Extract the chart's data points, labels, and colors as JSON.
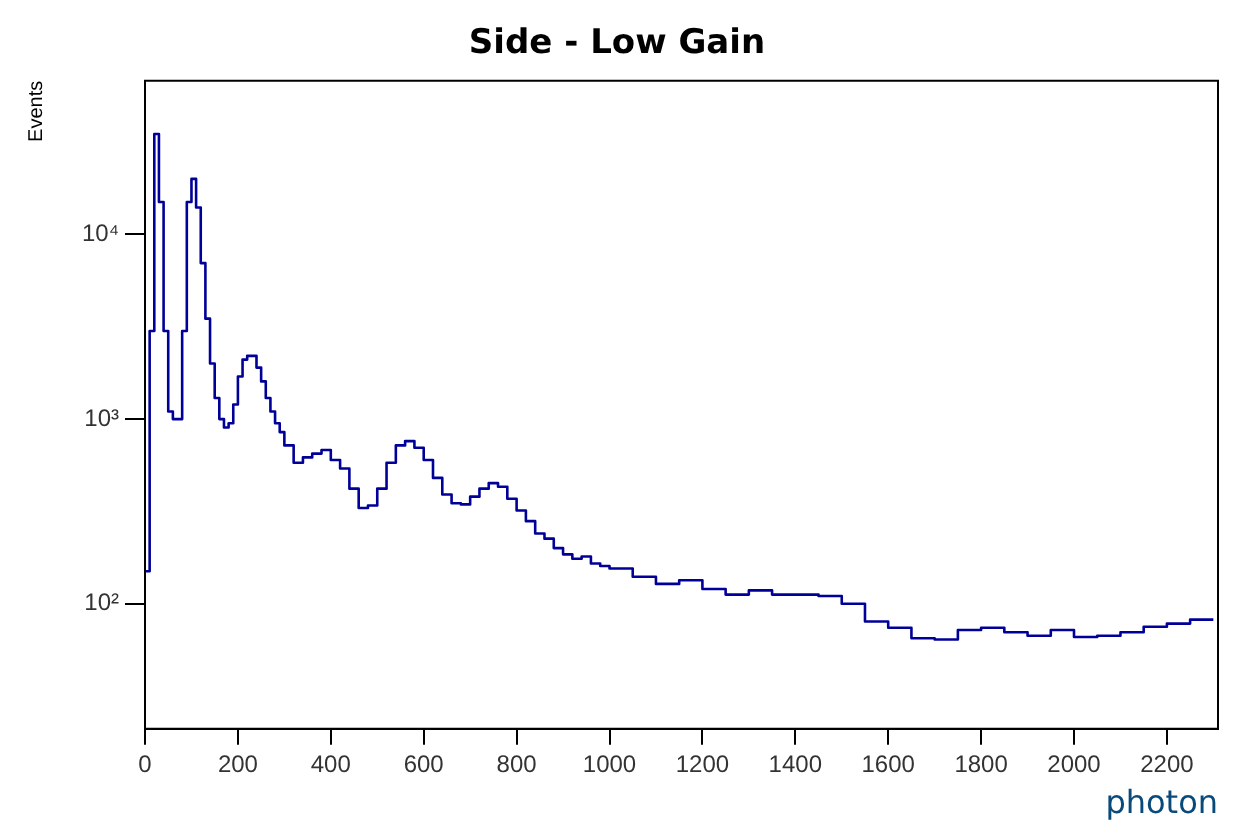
{
  "chart_data": {
    "type": "histogram",
    "title": "Side - Low Gain",
    "xlabel": "photon",
    "ylabel": "Events",
    "bins": [
      0,
      10,
      20,
      30,
      40,
      50,
      60,
      70,
      80,
      90,
      100,
      110,
      120,
      130,
      140,
      150,
      160,
      170,
      180,
      190,
      200,
      210,
      220,
      230,
      240,
      250,
      260,
      270,
      280,
      290,
      300,
      320,
      340,
      360,
      380,
      400,
      420,
      440,
      460,
      480,
      500,
      520,
      540,
      560,
      580,
      600,
      620,
      640,
      660,
      680,
      700,
      720,
      740,
      760,
      780,
      800,
      820,
      840,
      860,
      880,
      900,
      920,
      940,
      960,
      980,
      1000,
      1050,
      1100,
      1150,
      1200,
      1250,
      1300,
      1350,
      1400,
      1450,
      1500,
      1550,
      1600,
      1650,
      1700,
      1750,
      1800,
      1850,
      1900,
      1950,
      2000,
      2050,
      2100,
      2150,
      2200,
      2250,
      2300
    ],
    "values": [
      150,
      3000,
      35000,
      15000,
      3000,
      1100,
      1000,
      1000,
      3000,
      15000,
      20000,
      14000,
      7000,
      3500,
      2000,
      1300,
      1000,
      900,
      950,
      1200,
      1700,
      2100,
      2200,
      2200,
      1900,
      1600,
      1300,
      1100,
      950,
      850,
      720,
      580,
      620,
      650,
      680,
      600,
      540,
      420,
      330,
      340,
      420,
      580,
      720,
      760,
      700,
      600,
      480,
      390,
      350,
      345,
      380,
      420,
      450,
      430,
      370,
      320,
      280,
      240,
      225,
      200,
      185,
      175,
      180,
      165,
      160,
      155,
      140,
      128,
      134,
      120,
      112,
      118,
      112,
      112,
      110,
      100,
      80,
      74,
      65,
      64,
      72,
      74,
      70,
      67,
      72,
      66,
      67,
      70,
      75,
      78,
      82
    ],
    "color": "#000099",
    "log": "y",
    "xlim": [
      0,
      2310
    ],
    "ylim": [
      21,
      68000
    ],
    "xticks": [
      0,
      200,
      400,
      600,
      800,
      1000,
      1200,
      1400,
      1600,
      1800,
      2000,
      2200
    ],
    "yticks": [
      {
        "value": 100,
        "label": "10²"
      },
      {
        "value": 1000,
        "label": "10³"
      },
      {
        "value": 10000,
        "label": "10⁴"
      }
    ],
    "grid": false,
    "legend": false
  }
}
